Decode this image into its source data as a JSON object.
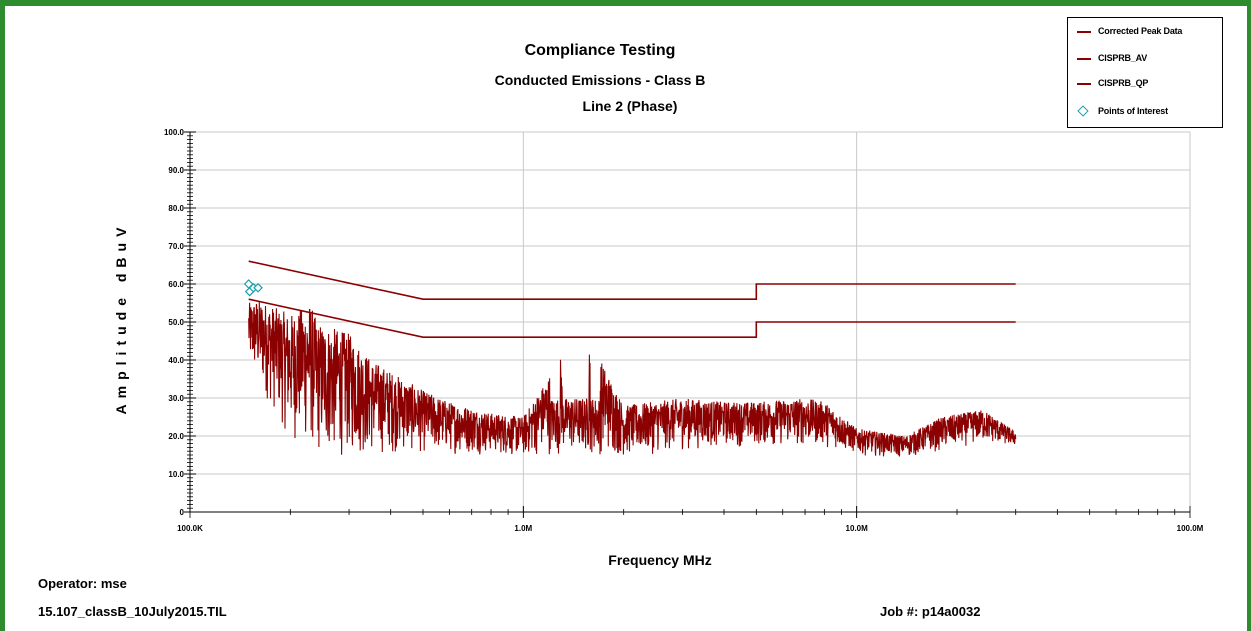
{
  "chart_data": {
    "type": "line",
    "title": "Compliance Testing",
    "subtitle": "Conducted Emissions - Class B",
    "subtitle2": "Line 2 (Phase)",
    "xlabel": "Frequency MHz",
    "ylabel": "Amplitude dBuV",
    "x_scale": "log",
    "xlim_mhz": [
      0.1,
      100
    ],
    "ylim": [
      0,
      100
    ],
    "grid": true,
    "legend_position": "top-right",
    "x_ticks": [
      {
        "value": 0.1,
        "label": "100.0K"
      },
      {
        "value": 1,
        "label": "1.0M"
      },
      {
        "value": 10,
        "label": "10.0M"
      },
      {
        "value": 100,
        "label": "100.0M"
      }
    ],
    "y_ticks": [
      "0",
      "10.0",
      "20.0",
      "30.0",
      "40.0",
      "50.0",
      "60.0",
      "70.0",
      "80.0",
      "90.0",
      "100.0"
    ],
    "series": [
      {
        "name": "Corrected Peak Data",
        "color": "#8b0000",
        "x": [
          0.15,
          0.16,
          0.2,
          0.23,
          0.24,
          0.3,
          0.35,
          0.4,
          0.5,
          0.6,
          0.8,
          1.0,
          1.3,
          1.58,
          2.0,
          3.0,
          4.0,
          5.0,
          7.0,
          8.0,
          10.0,
          14.0,
          18.0,
          24.0,
          30.0
        ],
        "y_top": [
          55,
          56,
          52,
          55,
          50,
          47,
          40,
          37,
          32,
          29,
          26,
          25,
          41,
          46,
          28,
          30,
          29,
          29,
          30,
          29,
          22,
          20,
          25,
          27,
          21
        ],
        "y_bottom": [
          37,
          33,
          18,
          16,
          13,
          14,
          14,
          15,
          15,
          15,
          15,
          14,
          15,
          15,
          14,
          16,
          17,
          17,
          17,
          17,
          15,
          14,
          16,
          18,
          17
        ]
      },
      {
        "name": "CISPRB_AV",
        "color": "#8b0000",
        "x": [
          0.15,
          0.5,
          5.0,
          5.0,
          30.0
        ],
        "y": [
          56,
          46,
          46,
          50,
          50
        ]
      },
      {
        "name": "CISPRB_QP",
        "color": "#8b0000",
        "x": [
          0.15,
          0.5,
          5.0,
          5.0,
          30.0
        ],
        "y": [
          66,
          56,
          56,
          60,
          60
        ]
      },
      {
        "name": "Points of Interest",
        "color": "#1a9fa8",
        "marker": "diamond",
        "x": [
          0.15,
          0.151,
          0.155,
          0.16
        ],
        "y": [
          60,
          58,
          59,
          59
        ]
      }
    ]
  },
  "legend": {
    "items": [
      "Corrected Peak Data",
      "CISPRB_AV",
      "CISPRB_QP",
      "Points of Interest"
    ]
  },
  "footer": {
    "operator": "Operator: mse",
    "file": "15.107_classB_10July2015.TIL",
    "job": "Job #: p14a0032"
  }
}
